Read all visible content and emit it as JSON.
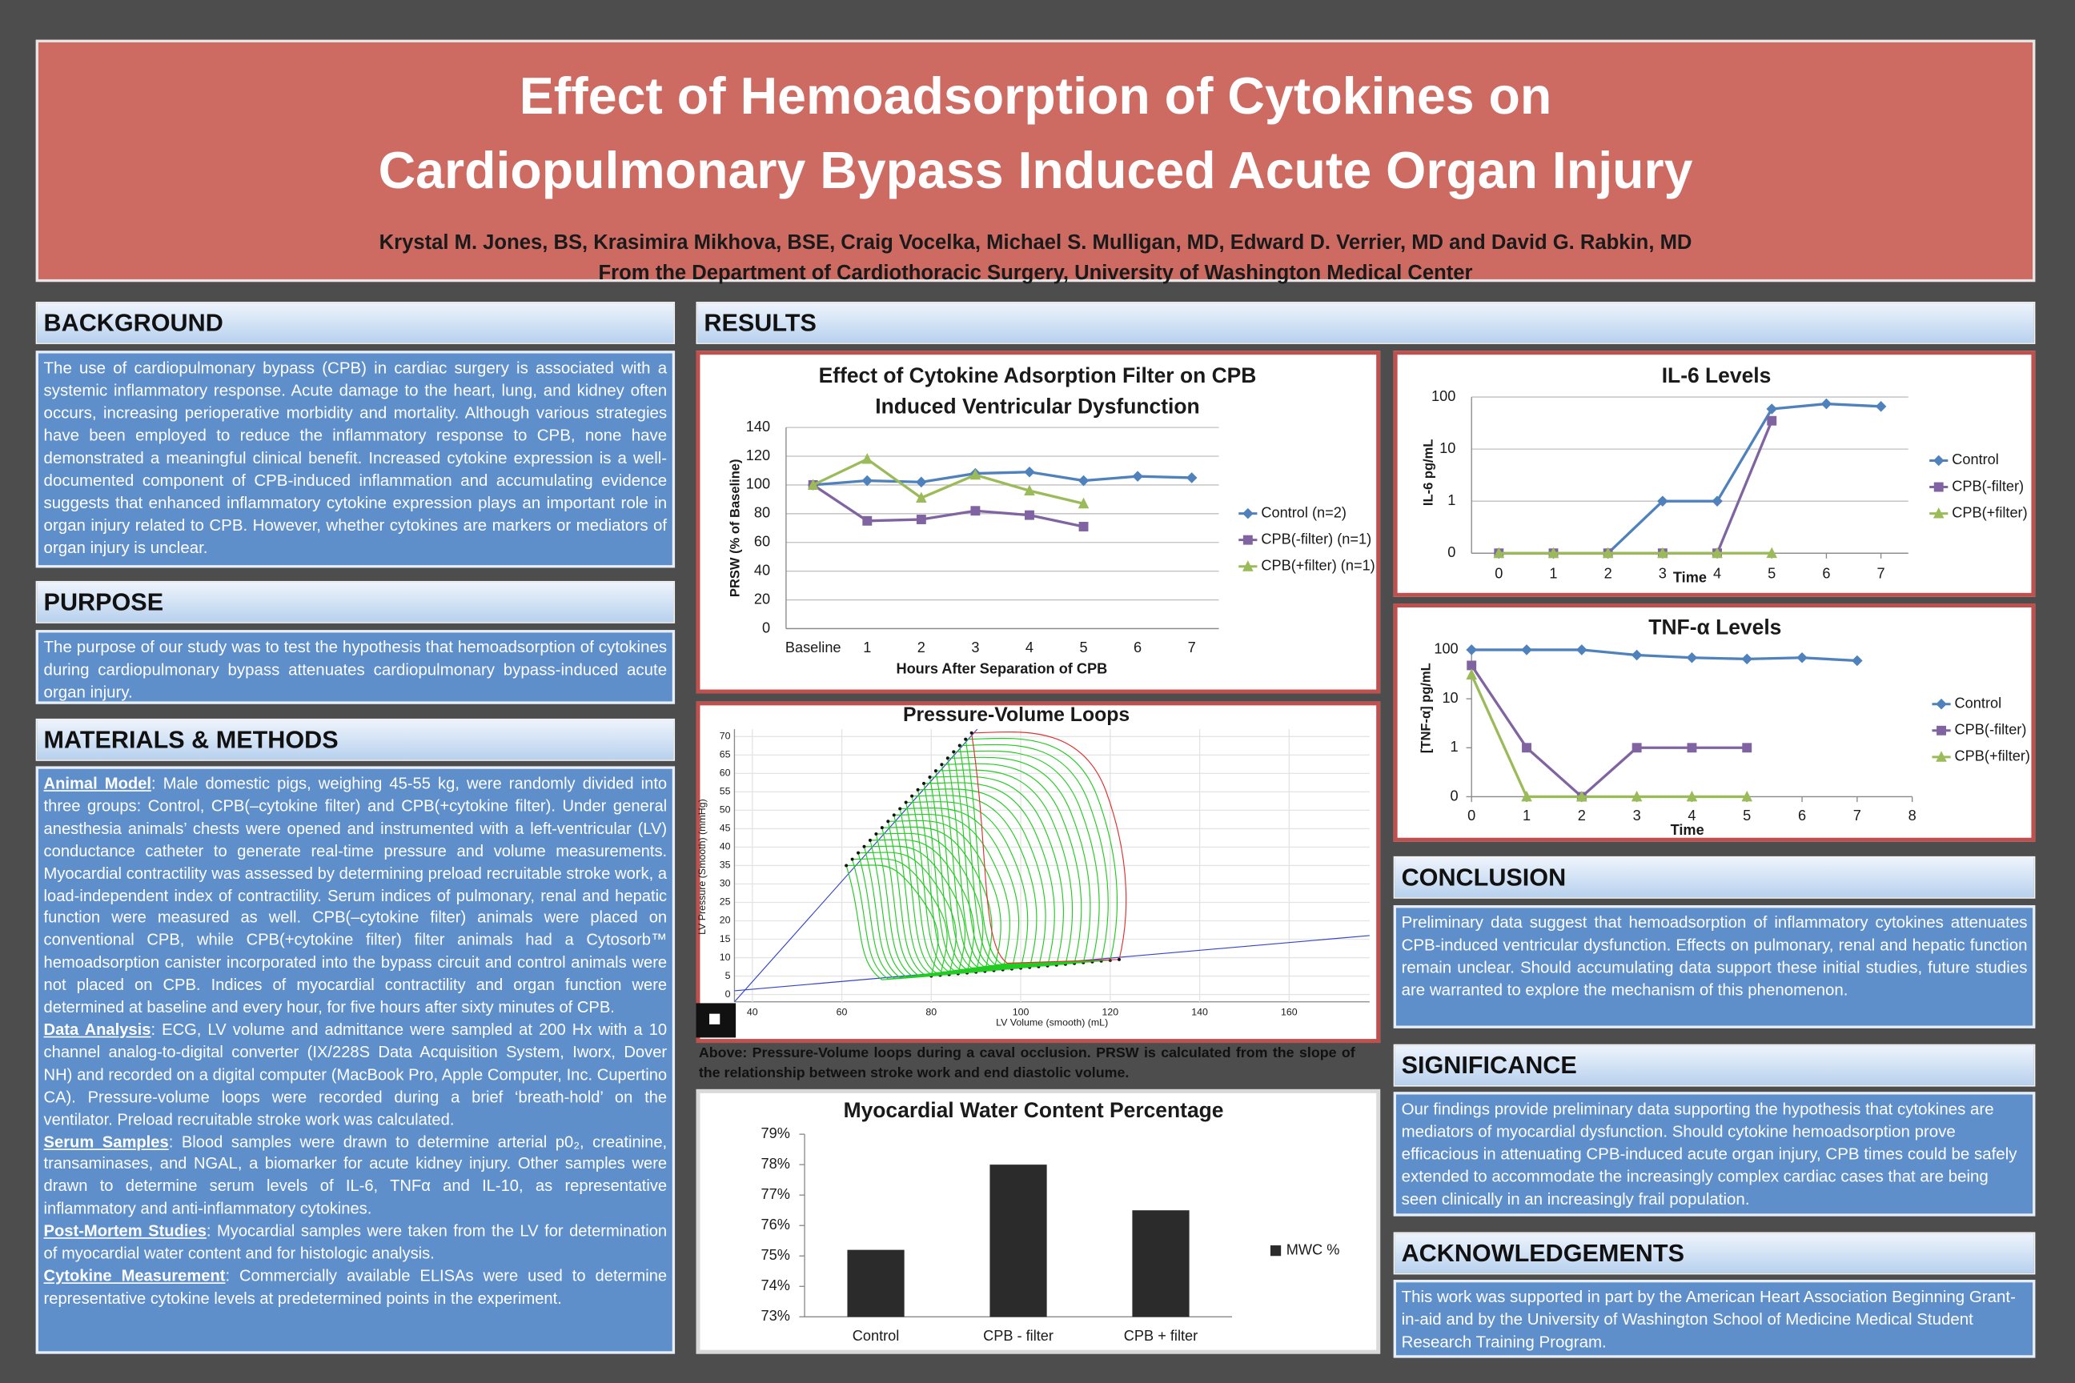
{
  "header": {
    "title": [
      "Effect of Hemoadsorption of Cytokines on",
      "Cardiopulmonary Bypass Induced Acute Organ Injury"
    ],
    "authors": "Krystal M. Jones, BS, Krasimira Mikhova, BSE, Craig Vocelka, Michael S. Mulligan, MD, Edward D. Verrier, MD and David G. Rabkin, MD",
    "affiliation": "From the Department of Cardiothoracic Surgery, University of Washington Medical Center"
  },
  "background": {
    "heading": "BACKGROUND",
    "text": "The use of cardiopulmonary bypass (CPB) in cardiac surgery is associated with a systemic inflammatory response. Acute damage to the heart, lung, and kidney often occurs, increasing perioperative morbidity and mortality. Although various strategies have been employed to reduce the inflammatory response to CPB, none have demonstrated a meaningful clinical benefit. Increased cytokine expression is a well-documented component of CPB-induced inflammation and accumulating evidence suggests that enhanced inflammatory cytokine expression plays an important role in organ injury related to CPB. However, whether cytokines are markers or mediators of organ injury is unclear."
  },
  "purpose": {
    "heading": "PURPOSE",
    "text": "The purpose of our study was to test the hypothesis that hemoadsorption of cytokines during cardiopulmonary bypass attenuates cardiopulmonary bypass-induced acute organ injury."
  },
  "methods": {
    "heading": "MATERIALS & METHODS",
    "paragraphs": [
      {
        "label": "Animal Model",
        "text": ": Male domestic pigs, weighing 45-55 kg, were randomly divided into three groups: Control, CPB(–cytokine filter) and CPB(+cytokine filter). Under general anesthesia animals’ chests were opened and instrumented with a left-ventricular (LV) conductance catheter to generate real-time pressure and volume measurements. Myocardial contractility was assessed by determining preload recruitable stroke work, a load-independent index of contractility. Serum indices of pulmonary, renal and hepatic function were measured as well. CPB(–cytokine filter) animals were placed on conventional CPB, while CPB(+cytokine filter) filter animals had a Cytosorb™ hemoadsorption canister incorporated into the bypass circuit and control animals were not placed on CPB. Indices of myocardial contractility and organ function were determined at baseline and every hour, for five hours after sixty minutes of CPB."
      },
      {
        "label": "Data Analysis",
        "text": ": ECG, LV volume and admittance were sampled at 200 Hx with a 10 channel analog-to-digital converter (IX/228S Data Acquisition System, Iworx, Dover NH) and recorded on a digital computer (MacBook Pro, Apple Computer, Inc. Cupertino CA). Pressure-volume loops were recorded during a brief ‘breath-hold’ on the ventilator. Preload recruitable stroke work was calculated."
      },
      {
        "label": "Serum Samples",
        "text": ": Blood samples were drawn to determine arterial p0₂, creatinine, transaminases, and NGAL, a biomarker for acute kidney injury. Other samples were drawn to determine serum levels of IL-6, TNFα and IL-10, as representative inflammatory and anti-inflammatory cytokines."
      },
      {
        "label": "Post-Mortem Studies",
        "text": ": Myocardial samples were taken from the LV for determination of myocardial water content and for histologic analysis."
      },
      {
        "label": "Cytokine Measurement",
        "text": ": Commercially available ELISAs were used to determine representative cytokine levels at predetermined points in the experiment."
      }
    ]
  },
  "results": {
    "heading": "RESULTS"
  },
  "caption": "Above: Pressure-Volume loops during a caval occlusion. PRSW is calculated from the slope of the relationship between stroke work and end diastolic volume.",
  "conclusion": {
    "heading": "CONCLUSION",
    "text": "Preliminary data suggest that hemoadsorption of inflammatory cytokines attenuates CPB-induced ventricular dysfunction. Effects on pulmonary, renal and hepatic function remain unclear. Should accumulating data support these initial studies, future studies are warranted to explore the mechanism of this phenomenon."
  },
  "significance": {
    "heading": "SIGNIFICANCE",
    "text": "Our findings provide preliminary data supporting the hypothesis that cytokines are mediators of myocardial dysfunction. Should cytokine hemoadsorption prove efficacious in attenuating CPB-induced acute organ injury, CPB times could be safely extended to accommodate the increasingly complex cardiac cases that are being seen clinically in an increasingly frail population."
  },
  "acknowledgements": {
    "heading": "ACKNOWLEDGEMENTS",
    "text": "This work was supported in part by the American Heart Association Beginning Grant-in-aid and by the University of Washington School of Medicine Medical Student Research Training Program."
  },
  "chart_data": [
    {
      "type": "line",
      "title": [
        "Effect of Cytokine Adsorption Filter on CPB",
        "Induced Ventricular Dysfunction"
      ],
      "xlabel": "Hours After Separation of CPB",
      "ylabel": "PRSW (% of Baseline)",
      "categories": [
        "Baseline",
        "1",
        "2",
        "3",
        "4",
        "5",
        "6",
        "7"
      ],
      "series": [
        {
          "name": "Control (n=2)",
          "color": "#4f81bd",
          "marker": "diamond",
          "values": [
            100,
            103,
            102,
            108,
            109,
            103,
            106,
            105
          ]
        },
        {
          "name": "CPB(-filter) (n=1)",
          "color": "#8064a2",
          "marker": "square",
          "values": [
            100,
            75,
            76,
            82,
            79,
            71,
            null,
            null
          ]
        },
        {
          "name": "CPB(+filter) (n=1)",
          "color": "#9bbb59",
          "marker": "triangle",
          "values": [
            100,
            118,
            91,
            107,
            96,
            87,
            null,
            null
          ]
        }
      ],
      "ylim": [
        0,
        140
      ],
      "yticks": [
        0,
        20,
        40,
        60,
        80,
        100,
        120,
        140
      ],
      "grid": true,
      "legend": "right"
    },
    {
      "type": "line",
      "title": "IL-6 Levels",
      "xlabel": "Time",
      "ylabel": "IL-6 pg/mL",
      "x": [
        0,
        1,
        2,
        3,
        4,
        5,
        6,
        7
      ],
      "series": [
        {
          "name": "Control",
          "color": "#4f81bd",
          "marker": "diamond",
          "values": [
            0,
            0,
            0,
            1,
            1,
            59,
            74,
            66
          ]
        },
        {
          "name": "CPB(-filter)",
          "color": "#8064a2",
          "marker": "square",
          "values": [
            0,
            0,
            0,
            0,
            0,
            35,
            null,
            null
          ]
        },
        {
          "name": "CPB(+filter)",
          "color": "#9bbb59",
          "marker": "triangle",
          "values": [
            0,
            0,
            0,
            0,
            0,
            0,
            null,
            null
          ]
        }
      ],
      "xlim": [
        -0.5,
        7.5
      ],
      "xticks": [
        0,
        1,
        2,
        3,
        4,
        5,
        6,
        7
      ],
      "ylim": [
        0,
        100
      ],
      "yticks": [
        0,
        1,
        10,
        100
      ],
      "yscale": "tick-spaced",
      "grid": true,
      "legend": "right"
    },
    {
      "type": "line",
      "title": "TNF-α Levels",
      "xlabel": "Time",
      "ylabel": "[TNF-α] pg/mL",
      "x": [
        0,
        1,
        2,
        3,
        4,
        5,
        6,
        7
      ],
      "series": [
        {
          "name": "Control",
          "color": "#4f81bd",
          "marker": "diamond",
          "values": [
            100,
            100,
            100,
            78,
            69,
            65,
            69,
            60
          ]
        },
        {
          "name": "CPB(-filter)",
          "color": "#8064a2",
          "marker": "square",
          "values": [
            48,
            1,
            0,
            1,
            1,
            1,
            null,
            null
          ]
        },
        {
          "name": "CPB(+filter)",
          "color": "#9bbb59",
          "marker": "triangle",
          "values": [
            31,
            0,
            0,
            0,
            0,
            0,
            null,
            null
          ]
        }
      ],
      "xlim": [
        0,
        8
      ],
      "xticks": [
        0,
        1,
        2,
        3,
        4,
        5,
        6,
        7,
        8
      ],
      "ylim": [
        0,
        100
      ],
      "yticks": [
        0,
        1,
        10,
        100
      ],
      "yscale": "tick-spaced",
      "grid": false,
      "legend": "right"
    },
    {
      "type": "pv-loop",
      "title": "Pressure-Volume Loops",
      "xlabel": "LV Volume (smooth) (mL)",
      "ylabel": "LV Pressure (Smooth) (mmHg)",
      "xlim": [
        36,
        178
      ],
      "xticks": [
        40,
        60,
        80,
        100,
        120,
        140,
        160
      ],
      "ylim": [
        -2,
        72
      ],
      "yticks": [
        0,
        5,
        10,
        15,
        20,
        25,
        30,
        35,
        40,
        45,
        50,
        55,
        60,
        65,
        70
      ],
      "grid": true
    },
    {
      "type": "bar",
      "title": "Myocardial Water Content Percentage",
      "categories": [
        "Control",
        "CPB - filter",
        "CPB + filter"
      ],
      "series": [
        {
          "name": "MWC %",
          "color": "#2b2b2b",
          "values": [
            75.2,
            78.0,
            76.5
          ]
        }
      ],
      "ylim": [
        73,
        79
      ],
      "yticks": [
        {
          "value": 73,
          "label": "73%"
        },
        {
          "value": 74,
          "label": "74%"
        },
        {
          "value": 75,
          "label": "75%"
        },
        {
          "value": 76,
          "label": "76%"
        },
        {
          "value": 77,
          "label": "77%"
        },
        {
          "value": 78,
          "label": "78%"
        },
        {
          "value": 79,
          "label": "79%"
        }
      ],
      "grid": false,
      "legend": "right"
    }
  ]
}
